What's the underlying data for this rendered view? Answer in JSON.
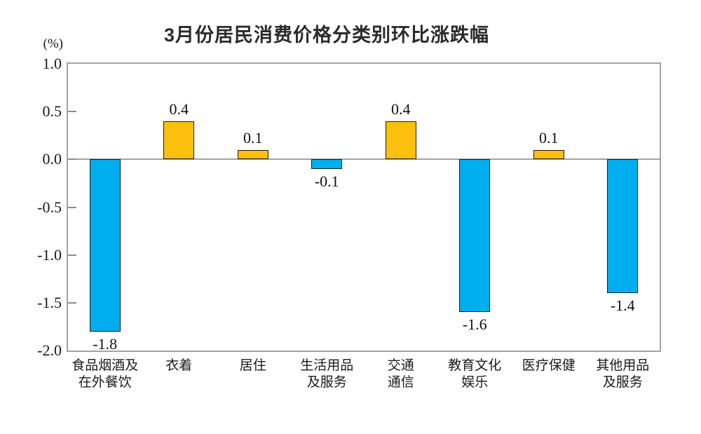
{
  "chart_data": {
    "type": "bar",
    "title": "3月份居民消费价格分类别环比涨跌幅",
    "ylabel": "(%)",
    "xlabel": "",
    "ylim": [
      -2.0,
      1.0
    ],
    "yticks": [
      1.0,
      0.5,
      0.0,
      -0.5,
      -1.0,
      -1.5,
      -2.0
    ],
    "categories": [
      "食品烟酒及\n在外餐饮",
      "衣着",
      "居住",
      "生活用品\n及服务",
      "交通\n通信",
      "教育文化\n娱乐",
      "医疗保健",
      "其他用品\n及服务"
    ],
    "values": [
      -1.8,
      0.4,
      0.1,
      -0.1,
      0.4,
      -1.6,
      0.1,
      -1.4
    ],
    "value_labels": [
      "-1.8",
      "0.4",
      "0.1",
      "-0.1",
      "0.4",
      "-1.6",
      "0.1",
      "-1.4"
    ],
    "grid": false,
    "legend": false,
    "colors": {
      "positive_bar": "#FDC00F",
      "negative_bar": "#00AEEF",
      "bar_border": "#1c1c1c",
      "axis_line": "#a3a3a3",
      "tick_mark": "#8c8c8c",
      "text": "#1a1a1a"
    }
  }
}
